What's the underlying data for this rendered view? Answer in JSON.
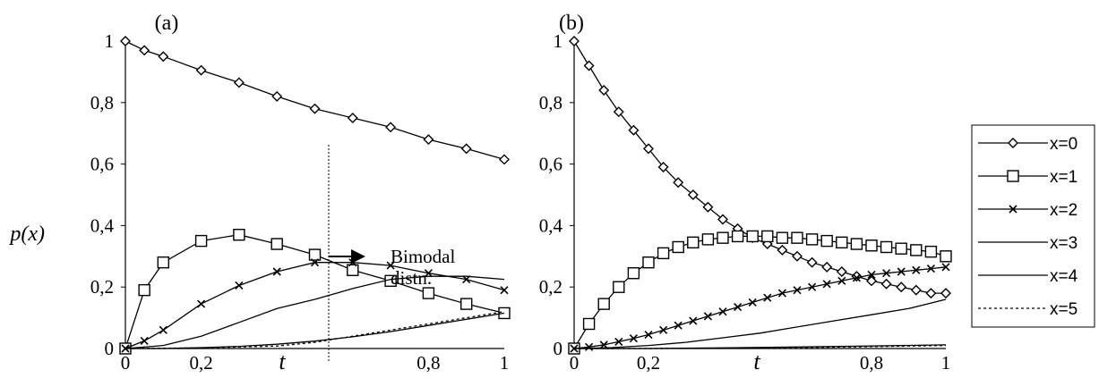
{
  "chart_data": [
    {
      "type": "line",
      "title": "(a)",
      "xlabel": "t",
      "ylabel": "p(x)",
      "xlim": [
        0,
        1
      ],
      "ylim": [
        0,
        1
      ],
      "x_ticks": [
        "0",
        "0,2",
        "0,8",
        "1"
      ],
      "y_ticks": [
        "0",
        "0,2",
        "0,4",
        "0,6",
        "0,8",
        "1"
      ],
      "grid": false,
      "annotation": {
        "text_line1": "Bimodal",
        "text_line2": "distn.",
        "at_t": 0.46
      },
      "series": [
        {
          "name": "x=0",
          "marker": "diamond",
          "x": [
            0,
            0.05,
            0.1,
            0.2,
            0.3,
            0.4,
            0.5,
            0.6,
            0.7,
            0.8,
            0.9,
            1.0
          ],
          "y": [
            1.0,
            0.97,
            0.95,
            0.905,
            0.865,
            0.82,
            0.78,
            0.75,
            0.72,
            0.68,
            0.65,
            0.615
          ]
        },
        {
          "name": "x=1",
          "marker": "square",
          "x": [
            0,
            0.05,
            0.1,
            0.2,
            0.3,
            0.4,
            0.5,
            0.6,
            0.7,
            0.8,
            0.9,
            1.0
          ],
          "y": [
            0.0,
            0.19,
            0.28,
            0.35,
            0.37,
            0.34,
            0.305,
            0.255,
            0.22,
            0.18,
            0.145,
            0.115
          ]
        },
        {
          "name": "x=2",
          "marker": "x",
          "x": [
            0,
            0.05,
            0.1,
            0.2,
            0.3,
            0.4,
            0.5,
            0.6,
            0.7,
            0.8,
            0.9,
            1.0
          ],
          "y": [
            0.0,
            0.025,
            0.06,
            0.145,
            0.205,
            0.25,
            0.28,
            0.28,
            0.27,
            0.245,
            0.225,
            0.19
          ]
        },
        {
          "name": "x=3",
          "marker": "none",
          "x": [
            0,
            0.1,
            0.2,
            0.3,
            0.4,
            0.5,
            0.6,
            0.7,
            0.8,
            0.9,
            1.0
          ],
          "y": [
            0.0,
            0.01,
            0.04,
            0.085,
            0.13,
            0.16,
            0.195,
            0.225,
            0.235,
            0.235,
            0.225
          ]
        },
        {
          "name": "x=4",
          "marker": "none",
          "x": [
            0,
            0.1,
            0.2,
            0.3,
            0.4,
            0.5,
            0.6,
            0.7,
            0.8,
            0.9,
            1.0
          ],
          "y": [
            0.0,
            0.0,
            0.003,
            0.007,
            0.014,
            0.024,
            0.038,
            0.055,
            0.075,
            0.095,
            0.115
          ]
        },
        {
          "name": "x=5",
          "marker": "none",
          "dashed": true,
          "x": [
            0,
            0.2,
            0.4,
            0.5,
            0.6,
            0.7,
            0.8,
            0.9,
            1.0
          ],
          "y": [
            0.0,
            0.002,
            0.008,
            0.02,
            0.04,
            0.06,
            0.08,
            0.1,
            0.12
          ]
        }
      ]
    },
    {
      "type": "line",
      "title": "(b)",
      "xlabel": "t",
      "xlim": [
        0,
        1
      ],
      "ylim": [
        0,
        1
      ],
      "x_ticks": [
        "0",
        "0,2",
        "0,8",
        "1"
      ],
      "y_ticks": [
        "0",
        "0,2",
        "0,4",
        "0,6",
        "0,8",
        "1"
      ],
      "grid": false,
      "series": [
        {
          "name": "x=0",
          "marker": "diamond",
          "x": [
            0,
            0.04,
            0.08,
            0.12,
            0.16,
            0.2,
            0.24,
            0.28,
            0.32,
            0.36,
            0.4,
            0.44,
            0.48,
            0.52,
            0.56,
            0.6,
            0.64,
            0.68,
            0.72,
            0.76,
            0.8,
            0.84,
            0.88,
            0.92,
            0.96,
            1.0
          ],
          "y": [
            1.0,
            0.92,
            0.84,
            0.77,
            0.71,
            0.65,
            0.59,
            0.54,
            0.5,
            0.46,
            0.42,
            0.39,
            0.36,
            0.34,
            0.32,
            0.3,
            0.28,
            0.265,
            0.25,
            0.235,
            0.22,
            0.21,
            0.2,
            0.19,
            0.18,
            0.18
          ]
        },
        {
          "name": "x=1",
          "marker": "square",
          "x": [
            0,
            0.04,
            0.08,
            0.12,
            0.16,
            0.2,
            0.24,
            0.28,
            0.32,
            0.36,
            0.4,
            0.44,
            0.48,
            0.52,
            0.56,
            0.6,
            0.64,
            0.68,
            0.72,
            0.76,
            0.8,
            0.84,
            0.88,
            0.92,
            0.96,
            1.0
          ],
          "y": [
            0.0,
            0.08,
            0.145,
            0.2,
            0.245,
            0.28,
            0.31,
            0.33,
            0.345,
            0.355,
            0.36,
            0.365,
            0.365,
            0.365,
            0.36,
            0.36,
            0.355,
            0.35,
            0.345,
            0.34,
            0.335,
            0.33,
            0.325,
            0.32,
            0.315,
            0.3
          ]
        },
        {
          "name": "x=2",
          "marker": "x",
          "x": [
            0,
            0.04,
            0.08,
            0.12,
            0.16,
            0.2,
            0.24,
            0.28,
            0.32,
            0.36,
            0.4,
            0.44,
            0.48,
            0.52,
            0.56,
            0.6,
            0.64,
            0.68,
            0.72,
            0.76,
            0.8,
            0.84,
            0.88,
            0.92,
            0.96,
            1.0
          ],
          "y": [
            0.0,
            0.005,
            0.012,
            0.022,
            0.033,
            0.045,
            0.06,
            0.075,
            0.09,
            0.105,
            0.12,
            0.135,
            0.15,
            0.165,
            0.18,
            0.19,
            0.2,
            0.21,
            0.22,
            0.23,
            0.24,
            0.245,
            0.25,
            0.255,
            0.26,
            0.265
          ]
        },
        {
          "name": "x=3",
          "marker": "none",
          "x": [
            0,
            0.1,
            0.2,
            0.3,
            0.4,
            0.5,
            0.6,
            0.7,
            0.8,
            0.9,
            1.0
          ],
          "y": [
            0.0,
            0.003,
            0.01,
            0.02,
            0.035,
            0.05,
            0.07,
            0.09,
            0.11,
            0.13,
            0.16
          ]
        },
        {
          "name": "x=4",
          "marker": "none",
          "x": [
            0,
            0.2,
            0.4,
            0.6,
            0.8,
            1.0
          ],
          "y": [
            0.0,
            0.0,
            0.002,
            0.005,
            0.008,
            0.012
          ]
        },
        {
          "name": "x=5",
          "marker": "none",
          "dashed": true,
          "x": [
            0,
            0.2,
            0.4,
            0.6,
            0.8,
            1.0
          ],
          "y": [
            0.0,
            0.0,
            0.001,
            0.003,
            0.006,
            0.01
          ]
        }
      ]
    }
  ],
  "legend": {
    "placement": "right",
    "items": [
      {
        "label": "x=0",
        "marker": "diamond",
        "dashed": false
      },
      {
        "label": "x=1",
        "marker": "square",
        "dashed": false
      },
      {
        "label": "x=2",
        "marker": "x",
        "dashed": false
      },
      {
        "label": "x=3",
        "marker": "none",
        "dashed": false
      },
      {
        "label": "x=4",
        "marker": "none",
        "dashed": false
      },
      {
        "label": "x=5",
        "marker": "none",
        "dashed": true
      }
    ]
  }
}
